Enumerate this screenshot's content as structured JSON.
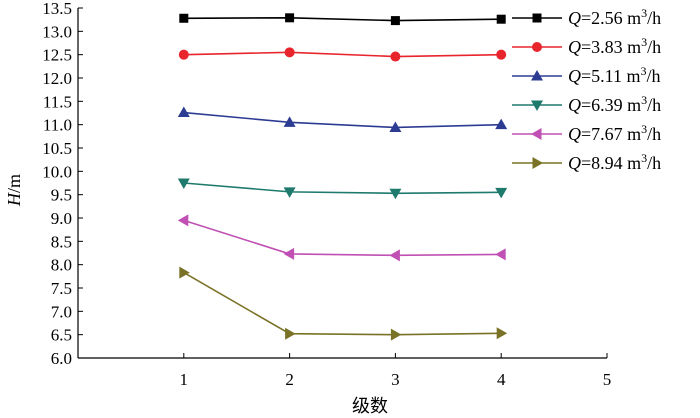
{
  "chart_data": {
    "type": "line",
    "xlabel": "级数",
    "ylabel": "H/m",
    "ylabel_italic_part": "H",
    "ylabel_unit_part": "/m",
    "xlim": [
      0,
      5
    ],
    "ylim": [
      6.0,
      13.5
    ],
    "x_ticks": [
      "1",
      "2",
      "3",
      "4",
      "5"
    ],
    "y_ticks": [
      "6.0",
      "6.5",
      "7.0",
      "7.5",
      "8.0",
      "8.5",
      "9.0",
      "9.5",
      "10.0",
      "10.5",
      "11.0",
      "11.5",
      "12.0",
      "12.5",
      "13.0",
      "13.5"
    ],
    "x": [
      1,
      2,
      3,
      4
    ],
    "grid": false,
    "legend_position": "right",
    "series": [
      {
        "name": "Q=2.56 m³/h",
        "q_label": "Q",
        "value_label": "=2.56 m",
        "unit_sup": "3",
        "unit_tail": "/h",
        "color": "#000000",
        "marker": "square",
        "values": [
          13.28,
          13.29,
          13.23,
          13.26
        ]
      },
      {
        "name": "Q=3.83 m³/h",
        "q_label": "Q",
        "value_label": "=3.83 m",
        "unit_sup": "3",
        "unit_tail": "/h",
        "color": "#e8252d",
        "marker": "circle",
        "values": [
          12.5,
          12.55,
          12.46,
          12.5
        ]
      },
      {
        "name": "Q=5.11 m³/h",
        "q_label": "Q",
        "value_label": "=5.11 m",
        "unit_sup": "3",
        "unit_tail": "/h",
        "color": "#2c3c93",
        "marker": "triangle-up",
        "values": [
          11.26,
          11.05,
          10.94,
          11.0
        ]
      },
      {
        "name": "Q=6.39 m³/h",
        "q_label": "Q",
        "value_label": "=6.39 m",
        "unit_sup": "3",
        "unit_tail": "/h",
        "color": "#1f7a6e",
        "marker": "triangle-down",
        "values": [
          9.75,
          9.56,
          9.53,
          9.55
        ]
      },
      {
        "name": "Q=7.67 m³/h",
        "q_label": "Q",
        "value_label": "=7.67 m",
        "unit_sup": "3",
        "unit_tail": "/h",
        "color": "#c050b4",
        "marker": "triangle-left",
        "values": [
          8.95,
          8.23,
          8.2,
          8.22
        ]
      },
      {
        "name": "Q=8.94 m³/h",
        "q_label": "Q",
        "value_label": "=8.94 m",
        "unit_sup": "3",
        "unit_tail": "/h",
        "color": "#7a7226",
        "marker": "triangle-right",
        "values": [
          7.83,
          6.52,
          6.5,
          6.53
        ]
      }
    ]
  }
}
